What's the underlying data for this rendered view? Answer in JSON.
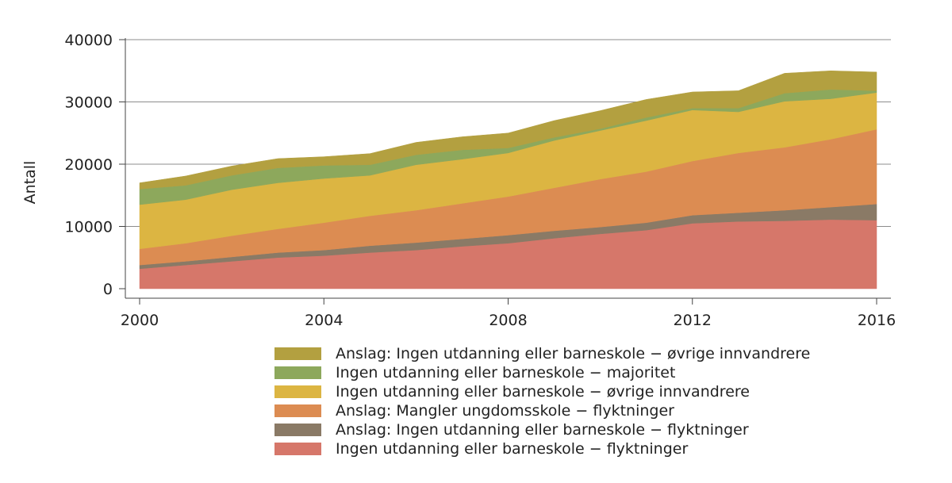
{
  "chart_data": {
    "type": "area",
    "stacked": true,
    "ylabel": "Antall",
    "xlabel": "",
    "xlim": [
      2000,
      2016
    ],
    "ylim": [
      0,
      40000
    ],
    "x_ticks": [
      "2000",
      "2004",
      "2008",
      "2012",
      "2016"
    ],
    "y_ticks": [
      "0",
      "10000",
      "20000",
      "30000",
      "40000"
    ],
    "grid": "horizontal",
    "legend_position": "bottom",
    "x": [
      2000,
      2001,
      2002,
      2003,
      2004,
      2005,
      2006,
      2007,
      2008,
      2009,
      2010,
      2011,
      2012,
      2013,
      2014,
      2015,
      2016
    ],
    "series": [
      {
        "name": "Ingen utdanning eller barneskole − flyktninger",
        "color": "#d6776a",
        "values": [
          3200,
          3800,
          4400,
          5000,
          5300,
          5800,
          6200,
          6800,
          7300,
          8100,
          8800,
          9400,
          10500,
          10800,
          10900,
          11100,
          11000
        ]
      },
      {
        "name": "Anslag: Ingen utdanning eller barneskole − flyktninger",
        "color": "#8a7a66",
        "values": [
          600,
          600,
          700,
          800,
          900,
          1100,
          1200,
          1200,
          1300,
          1200,
          1100,
          1200,
          1300,
          1400,
          1700,
          2000,
          2600
        ]
      },
      {
        "name": "Anslag: Mangler ungdomsskole − flyktninger",
        "color": "#dc8c52",
        "values": [
          2600,
          2900,
          3400,
          3800,
          4400,
          4800,
          5200,
          5700,
          6200,
          6900,
          7700,
          8200,
          8700,
          9600,
          10100,
          10900,
          12000
        ]
      },
      {
        "name": "Ingen utdanning eller barneskole − øvrige innvandrere",
        "color": "#dcb542",
        "values": [
          7100,
          7000,
          7400,
          7400,
          7100,
          6500,
          7300,
          7100,
          7000,
          7600,
          7800,
          8200,
          8200,
          6600,
          7400,
          6500,
          5900
        ]
      },
      {
        "name": "Ingen utdanning eller barneskole − majoritet",
        "color": "#8da85c",
        "values": [
          2500,
          2300,
          2300,
          2400,
          2100,
          1700,
          1600,
          1500,
          800,
          500,
          300,
          500,
          300,
          600,
          1300,
          1500,
          300
        ]
      },
      {
        "name": "Anslag: Ingen utdanning eller barneskole − øvrige innvandrere",
        "color": "#b3a040",
        "values": [
          1000,
          1500,
          1500,
          1500,
          1400,
          1800,
          2000,
          2100,
          2400,
          2700,
          2900,
          2900,
          2600,
          2800,
          3200,
          3000,
          3000
        ]
      }
    ],
    "legend_order": [
      5,
      4,
      3,
      2,
      1,
      0
    ]
  }
}
